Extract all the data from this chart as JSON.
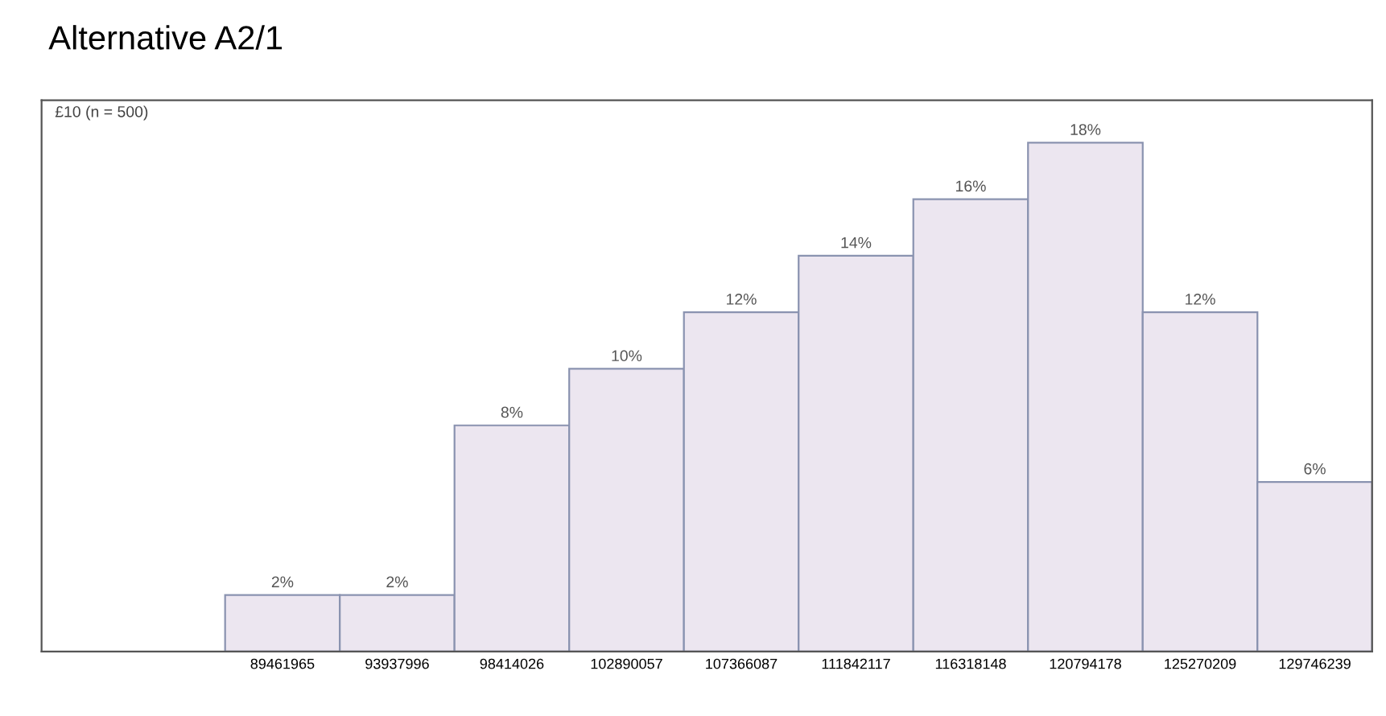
{
  "chart_data": {
    "type": "bar",
    "title": "Alternative A2/1",
    "subtitle": "£10 (n = 500)",
    "categories": [
      "89461965",
      "93937996",
      "98414026",
      "102890057",
      "107366087",
      "111842117",
      "116318148",
      "120794178",
      "125270209",
      "129746239"
    ],
    "values": [
      2,
      2,
      8,
      10,
      12,
      14,
      16,
      18,
      12,
      6
    ],
    "value_labels": [
      "2%",
      "2%",
      "8%",
      "10%",
      "12%",
      "14%",
      "16%",
      "18%",
      "12%",
      "6%"
    ],
    "color": "#ece6f0",
    "ylim": [
      0,
      19.5
    ],
    "tick_labels": "x",
    "grid": false,
    "legend": false
  }
}
